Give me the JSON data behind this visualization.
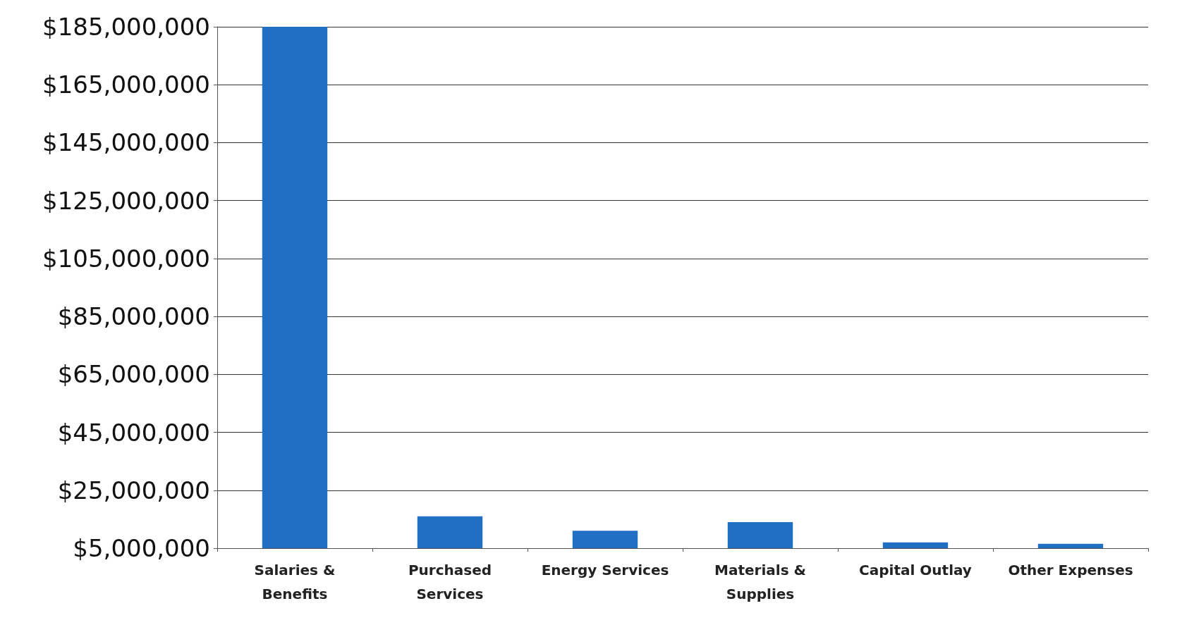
{
  "chart_data": {
    "type": "bar",
    "categories": [
      "Salaries &\nBenefits",
      "Purchased\nServices",
      "Energy Services",
      "Materials &\nSupplies",
      "Capital Outlay",
      "Other Expenses"
    ],
    "values": [
      185000000,
      16000000,
      11000000,
      14000000,
      7000000,
      6500000
    ],
    "color": "#1f6fc2",
    "ylim": [
      5000000,
      185000000
    ],
    "yticks": [
      {
        "value": 5000000,
        "label": "$5,000,000"
      },
      {
        "value": 25000000,
        "label": "$25,000,000"
      },
      {
        "value": 45000000,
        "label": "$45,000,000"
      },
      {
        "value": 65000000,
        "label": "$65,000,000"
      },
      {
        "value": 85000000,
        "label": "$85,000,000"
      },
      {
        "value": 105000000,
        "label": "$105,000,000"
      },
      {
        "value": 125000000,
        "label": "$125,000,000"
      },
      {
        "value": 145000000,
        "label": "$145,000,000"
      },
      {
        "value": 165000000,
        "label": "$165,000,000"
      },
      {
        "value": 185000000,
        "label": "$185,000,000"
      }
    ],
    "grid": "y"
  }
}
